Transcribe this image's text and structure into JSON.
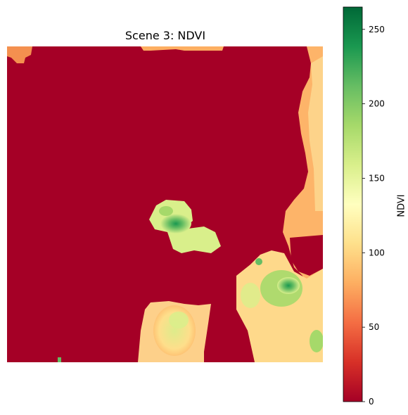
{
  "title": "Scene 3: NDVI",
  "colorbar": {
    "label": "NDVI",
    "range": [
      0,
      265
    ],
    "ticks": [
      {
        "value": 0,
        "label": "0"
      },
      {
        "value": 50,
        "label": "50"
      },
      {
        "value": 100,
        "label": "100"
      },
      {
        "value": 150,
        "label": "150"
      },
      {
        "value": 200,
        "label": "200"
      },
      {
        "value": 250,
        "label": "250"
      }
    ],
    "colormap": "RdYlGn",
    "stops": [
      "#a50026",
      "#d73027",
      "#f46d43",
      "#fdae61",
      "#fee08b",
      "#ffffbf",
      "#d9ef8b",
      "#a6d96a",
      "#66bd63",
      "#1a9850",
      "#006837"
    ]
  },
  "image": {
    "colors": {
      "background_low": "#a50026",
      "medium": "#fdae61",
      "high_green": "#66bd63"
    }
  }
}
